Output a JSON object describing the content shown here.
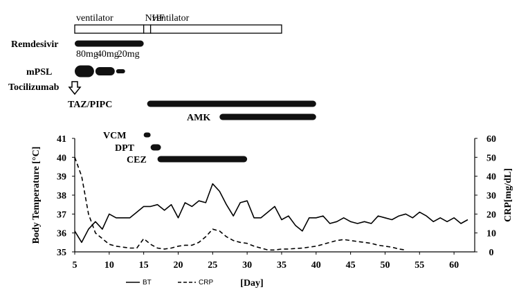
{
  "chart_data": {
    "type": "line",
    "xlabel": "[Day]",
    "ylabel_left": "Body Temperature [°C]",
    "ylabel_right": "CRP[mg/dL]",
    "x_range": [
      5,
      62
    ],
    "x_ticks": [
      "5",
      "10",
      "15",
      "20",
      "25",
      "30",
      "35",
      "40",
      "45",
      "50",
      "55",
      "60"
    ],
    "y_left_range": [
      35,
      41
    ],
    "y_left_ticks": [
      "35",
      "36",
      "37",
      "38",
      "39",
      "40",
      "41"
    ],
    "y_right_range": [
      0,
      60
    ],
    "y_right_ticks": [
      "0",
      "10",
      "20",
      "30",
      "40",
      "50",
      "60"
    ],
    "grid": false,
    "legend_position": "bottom-left",
    "series": [
      {
        "name": "BT",
        "axis": "left",
        "style": "solid",
        "x": [
          5,
          6,
          7,
          8,
          9,
          10,
          11,
          12,
          13,
          14,
          15,
          16,
          17,
          18,
          19,
          20,
          21,
          22,
          23,
          24,
          25,
          26,
          27,
          28,
          29,
          30,
          31,
          32,
          33,
          34,
          35,
          36,
          37,
          38,
          39,
          40,
          41,
          42,
          43,
          44,
          45,
          46,
          47,
          48,
          49,
          50,
          51,
          52,
          53,
          54,
          55,
          56,
          57,
          58,
          59,
          60,
          61,
          62
        ],
        "values": [
          36.1,
          35.5,
          36.2,
          36.6,
          36.2,
          37.0,
          36.8,
          36.8,
          36.8,
          37.1,
          37.4,
          37.4,
          37.5,
          37.2,
          37.5,
          36.8,
          37.6,
          37.4,
          37.7,
          37.6,
          38.6,
          38.2,
          37.5,
          36.9,
          37.6,
          37.7,
          36.8,
          36.8,
          37.1,
          37.4,
          36.7,
          36.9,
          36.4,
          36.1,
          36.8,
          36.8,
          36.9,
          36.5,
          36.6,
          36.8,
          36.6,
          36.5,
          36.6,
          36.5,
          36.9,
          36.8,
          36.7,
          36.9,
          37.0,
          36.8,
          37.1,
          36.9,
          36.6,
          36.8,
          36.6,
          36.8,
          36.5,
          36.7
        ]
      },
      {
        "name": "CRP",
        "axis": "right",
        "style": "dashed",
        "x": [
          5,
          6,
          7,
          8,
          9,
          10,
          11,
          12,
          13,
          14,
          15,
          16,
          17,
          18,
          19,
          20,
          21,
          22,
          23,
          24,
          25,
          26,
          27,
          28,
          29,
          30,
          31,
          32,
          33,
          34,
          35,
          36,
          37,
          38,
          39,
          40,
          41,
          42,
          43,
          44,
          45,
          46,
          47,
          48,
          49,
          50,
          51,
          52,
          53
        ],
        "values": [
          50,
          40,
          20,
          10,
          7,
          4,
          3,
          2.5,
          2,
          2,
          7,
          4,
          2,
          1.5,
          2,
          3,
          3.5,
          3.5,
          5,
          8,
          12,
          11,
          8,
          6,
          5,
          4.5,
          3,
          2,
          1,
          1,
          1.5,
          1.5,
          1.8,
          2,
          2.5,
          3,
          4,
          5,
          6,
          6.5,
          6,
          5.5,
          5,
          4.5,
          3.5,
          3,
          2.5,
          1.5,
          1
        ]
      }
    ],
    "respiratory_support": [
      {
        "label": "ventilator",
        "start": 5,
        "end": 15
      },
      {
        "label": "NHF",
        "start": 15,
        "end": 16
      },
      {
        "label": "ventilator",
        "start": 16,
        "end": 35
      }
    ],
    "treatments": [
      {
        "label": "Remdesivir",
        "bars": [
          {
            "start": 5,
            "end": 15
          }
        ]
      },
      {
        "label": "mPSL",
        "bars": [
          {
            "label": "80mg",
            "start": 5,
            "end": 8,
            "weight": "thick"
          },
          {
            "label": "40mg",
            "start": 8,
            "end": 11,
            "weight": "medium"
          },
          {
            "label": "20mg",
            "start": 11,
            "end": 12.5,
            "weight": "thin"
          }
        ]
      },
      {
        "label": "Tocilizumab",
        "marker": "arrow",
        "day": 5
      },
      {
        "label": "TAZ/PIPC",
        "bars": [
          {
            "start": 15.5,
            "end": 40
          }
        ]
      },
      {
        "label": "AMK",
        "bars": [
          {
            "start": 26,
            "end": 40
          }
        ]
      },
      {
        "label": "VCM",
        "bars": [
          {
            "start": 15,
            "end": 16
          }
        ]
      },
      {
        "label": "DPT",
        "bars": [
          {
            "start": 16,
            "end": 17.5
          }
        ]
      },
      {
        "label": "CEZ",
        "bars": [
          {
            "start": 17,
            "end": 30
          }
        ]
      }
    ]
  }
}
